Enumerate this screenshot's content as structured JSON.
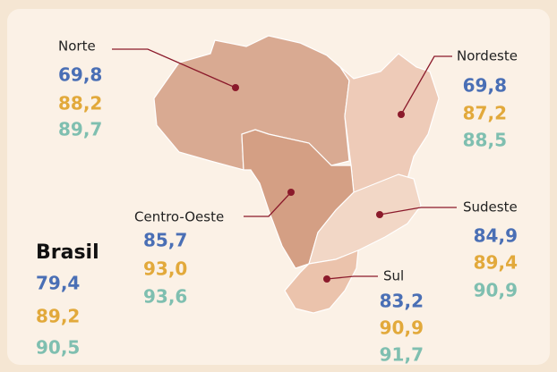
{
  "colors": [
    "#4a6fb5",
    "#e2a93b",
    "#7fbfb0"
  ],
  "regions": [
    {
      "name": "Norte",
      "values": [
        "69,8",
        "88,2",
        "89,7"
      ]
    },
    {
      "name": "Nordeste",
      "values": [
        "69,8",
        "87,2",
        "88,5"
      ]
    },
    {
      "name": "Centro-Oeste",
      "values": [
        "85,7",
        "93,0",
        "93,6"
      ]
    },
    {
      "name": "Sudeste",
      "values": [
        "84,9",
        "89,4",
        "90,9"
      ]
    },
    {
      "name": "Sul",
      "values": [
        "83,2",
        "90,9",
        "91,7"
      ]
    }
  ],
  "national": {
    "name": "Brasil",
    "values": [
      "79,4",
      "89,2",
      "90,5"
    ]
  }
}
